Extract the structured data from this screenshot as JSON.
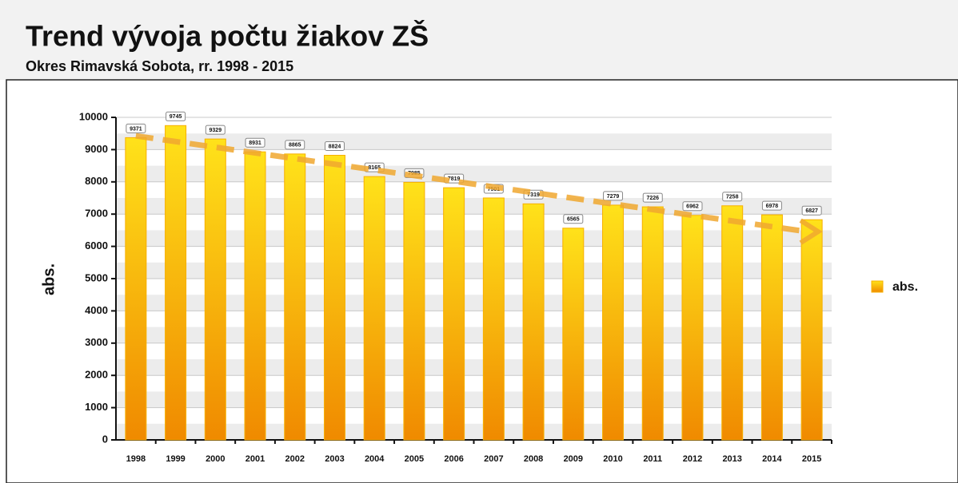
{
  "chart_data": {
    "type": "bar",
    "title": "Trend vývoja počtu žiakov ZŠ",
    "subtitle": "Okres Rimavská Sobota, rr. 1998 - 2015",
    "y_label": "abs.",
    "categories": [
      "1998",
      "1999",
      "2000",
      "2001",
      "2002",
      "2003",
      "2004",
      "2005",
      "2006",
      "2007",
      "2008",
      "2009",
      "2010",
      "2011",
      "2012",
      "2013",
      "2014",
      "2015"
    ],
    "series": [
      {
        "name": "abs.",
        "color": "#f7b000",
        "values": [
          9371,
          9745,
          9329,
          8931,
          8865,
          8824,
          8165,
          7985,
          7819,
          7501,
          7319,
          6565,
          7279,
          7226,
          6962,
          7258,
          6978,
          6827
        ]
      }
    ],
    "ylim": [
      0,
      10000
    ],
    "yticks": [
      0,
      1000,
      2000,
      3000,
      4000,
      5000,
      6000,
      7000,
      8000,
      9000,
      10000
    ],
    "grid": true,
    "trendline": true,
    "legend": "right"
  }
}
